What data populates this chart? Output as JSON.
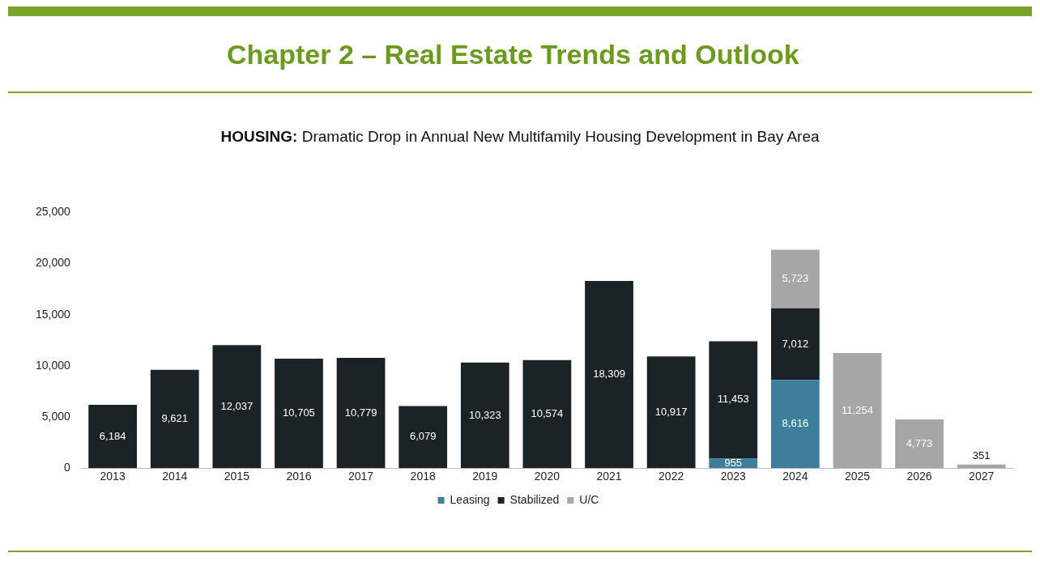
{
  "chart_data": {
    "type": "bar",
    "title": "Chapter 2 – Real Estate Trends and Outlook",
    "subtitle": "HOUSING: Dramatic Drop in Annual New Multifamily Housing Development in Bay Area",
    "categories": [
      "2013",
      "2014",
      "2015",
      "2016",
      "2017",
      "2018",
      "2019",
      "2020",
      "2021",
      "2022",
      "2023",
      "2024",
      "2025",
      "2026",
      "2027"
    ],
    "stacked": true,
    "series": [
      {
        "name": "Leasing",
        "color": "#3d7f9b",
        "values": [
          null,
          null,
          null,
          null,
          null,
          null,
          null,
          null,
          null,
          null,
          955,
          8616,
          null,
          null,
          null
        ],
        "value_labels": [
          null,
          null,
          null,
          null,
          null,
          null,
          null,
          null,
          null,
          null,
          "955",
          "8,616",
          null,
          null,
          null
        ]
      },
      {
        "name": "Stabilized",
        "color": "#1b2326",
        "values": [
          6184,
          9621,
          12037,
          10705,
          10779,
          6079,
          10323,
          10574,
          18309,
          10917,
          11453,
          7012,
          null,
          null,
          null
        ],
        "value_labels": [
          "6,184",
          "9,621",
          "12,037",
          "10,705",
          "10,779",
          "6,079",
          "10,323",
          "10,574",
          "18,309",
          "10,917",
          "11,453",
          "7,012",
          null,
          null,
          null
        ]
      },
      {
        "name": "U/C",
        "color": "#a6a6a6",
        "values": [
          null,
          null,
          null,
          null,
          null,
          null,
          null,
          null,
          null,
          null,
          null,
          5723,
          11254,
          4773,
          351
        ],
        "value_labels": [
          null,
          null,
          null,
          null,
          null,
          null,
          null,
          null,
          null,
          null,
          null,
          "5,723",
          "11,254",
          "4,773",
          "351"
        ]
      }
    ],
    "ylim": [
      0,
      25000
    ],
    "yticks": [
      0,
      {
        "value": 5000,
        "label": "5,000"
      },
      {
        "value": 10000,
        "label": "10,000"
      },
      {
        "value": 15000,
        "label": "15,000"
      },
      {
        "value": 20000,
        "label": "20,000"
      },
      {
        "value": 25000,
        "label": "25,000"
      }
    ],
    "grid": false,
    "legend": "bottom"
  }
}
